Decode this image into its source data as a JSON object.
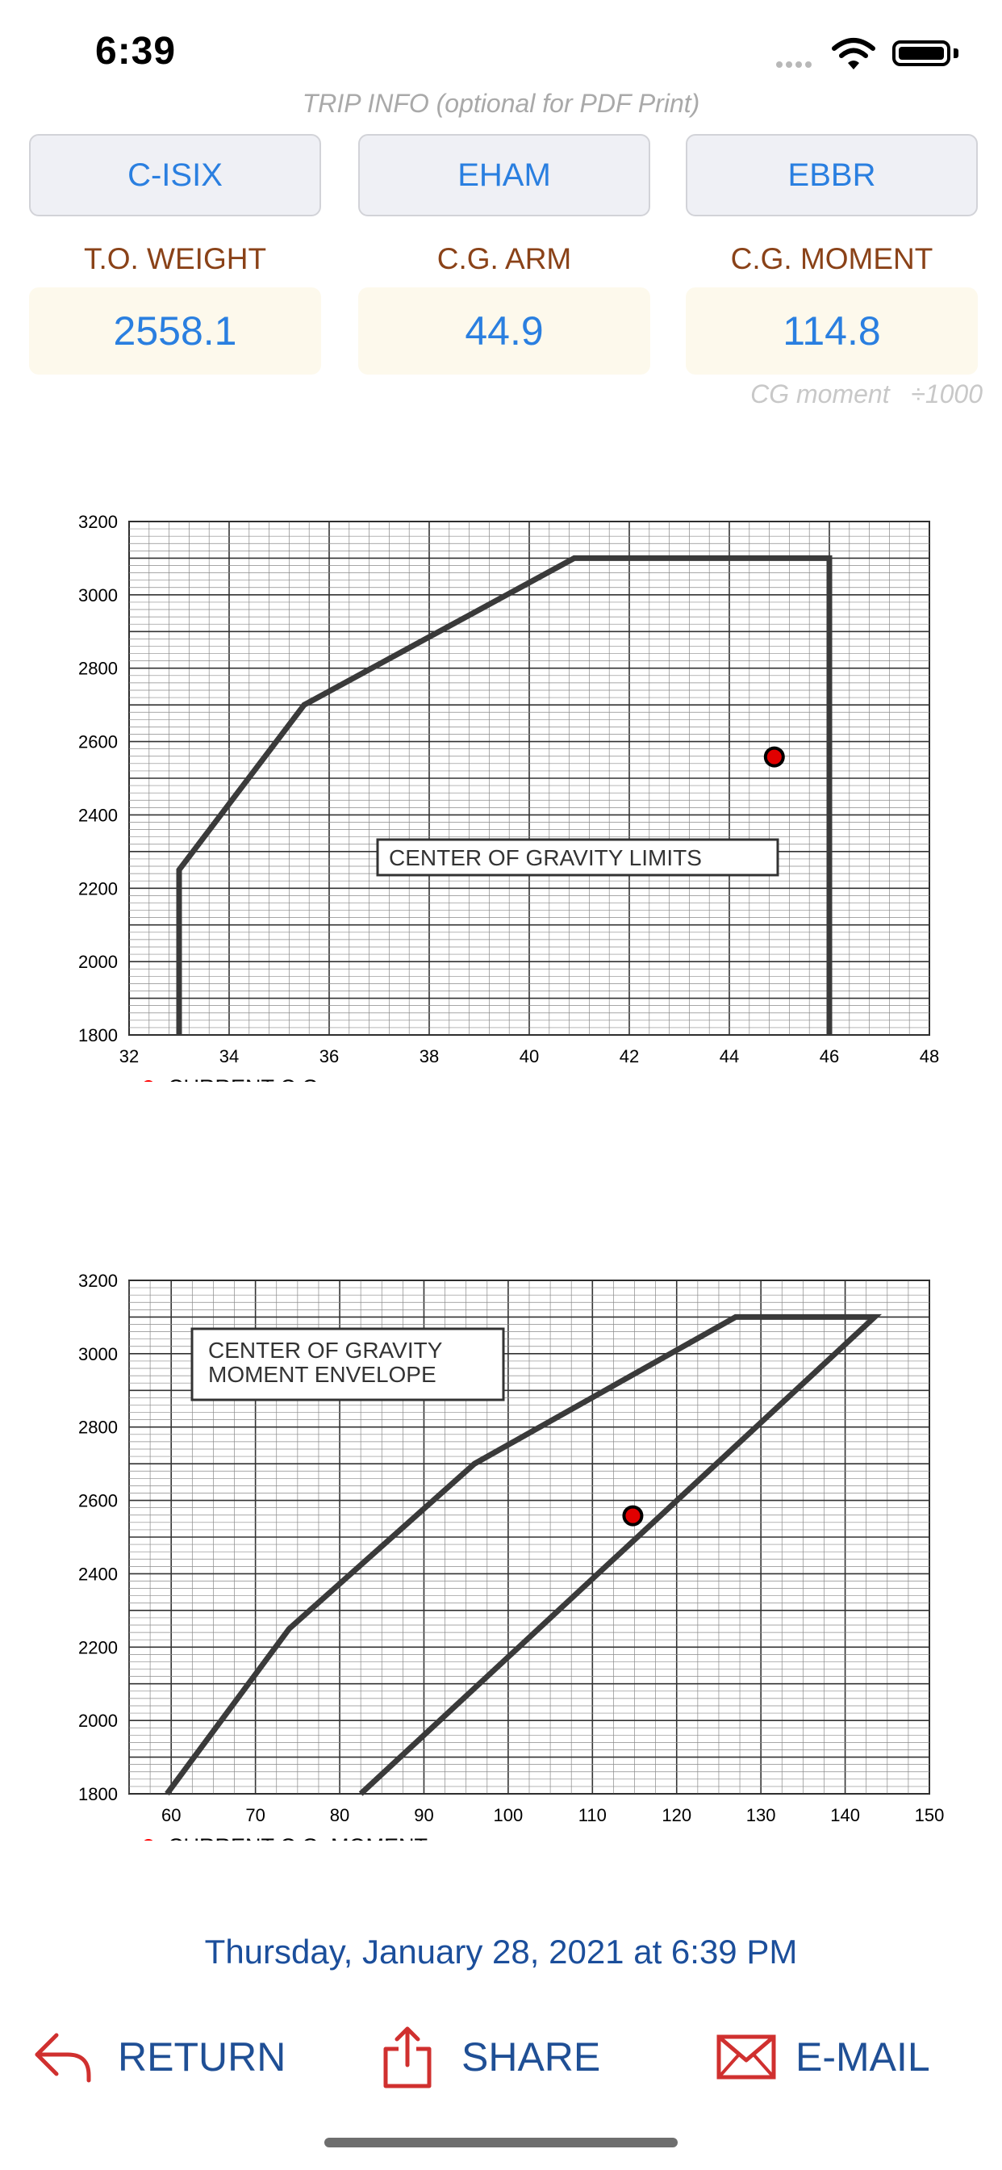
{
  "status_bar": {
    "time": "6:39"
  },
  "trip_info": {
    "caption": "TRIP INFO (optional for PDF Print)",
    "buttons": [
      "C-ISIX",
      "EHAM",
      "EBBR"
    ]
  },
  "stats": [
    {
      "label": "T.O. WEIGHT",
      "value": "2558.1"
    },
    {
      "label": "C.G. ARM",
      "value": "44.9"
    },
    {
      "label": "C.G. MOMENT",
      "value": "114.8"
    }
  ],
  "cg_moment_note": "CG moment   ÷1000",
  "chart_data": [
    {
      "type": "line",
      "title": "CENTER OF GRAVITY LIMITS",
      "xlabel": "",
      "ylabel": "",
      "xlim": [
        32,
        48
      ],
      "ylim": [
        1800,
        3200
      ],
      "x_ticks": [
        "32",
        "34",
        "36",
        "38",
        "40",
        "42",
        "44",
        "46",
        "48"
      ],
      "y_ticks": [
        "1800",
        "2000",
        "2200",
        "2400",
        "2600",
        "2800",
        "3000",
        "3200"
      ],
      "grid": true,
      "envelope": {
        "x": [
          33.0,
          33.0,
          35.5,
          40.9,
          46.0,
          46.0
        ],
        "y": [
          1800,
          2250,
          2700,
          3100,
          3100,
          1800
        ]
      },
      "point": {
        "x": 44.9,
        "y": 2558.1
      },
      "legend": [
        "CURRENT C.G."
      ],
      "legend_color": "#ff0000"
    },
    {
      "type": "line",
      "title": "CENTER OF GRAVITY\nMOMENT ENVELOPE",
      "xlabel": "",
      "ylabel": "",
      "xlim": [
        55,
        150
      ],
      "ylim": [
        1800,
        3200
      ],
      "x_ticks": [
        "60",
        "70",
        "80",
        "90",
        "100",
        "110",
        "120",
        "130",
        "140",
        "150"
      ],
      "y_ticks": [
        "1800",
        "2000",
        "2200",
        "2400",
        "2600",
        "2800",
        "3000",
        "3200"
      ],
      "grid": true,
      "envelope": {
        "x": [
          59.5,
          74,
          96,
          127,
          143.5,
          82.5
        ],
        "y": [
          1800,
          2250,
          2700,
          3100,
          3100,
          1800
        ]
      },
      "point": {
        "x": 114.8,
        "y": 2558.1
      },
      "legend": [
        "CURRENT C.G. MOMENT"
      ],
      "legend_color": "#ff0000"
    }
  ],
  "footer": {
    "datetime": "Thursday, January 28, 2021 at 6:39 PM"
  },
  "actions": {
    "return": "RETURN",
    "share": "SHARE",
    "email": "E-MAIL"
  },
  "colors": {
    "accent_blue": "#2a7fe0",
    "label_brown": "#8a4218",
    "action_red": "#d0302f",
    "action_text": "#1f4f95"
  }
}
